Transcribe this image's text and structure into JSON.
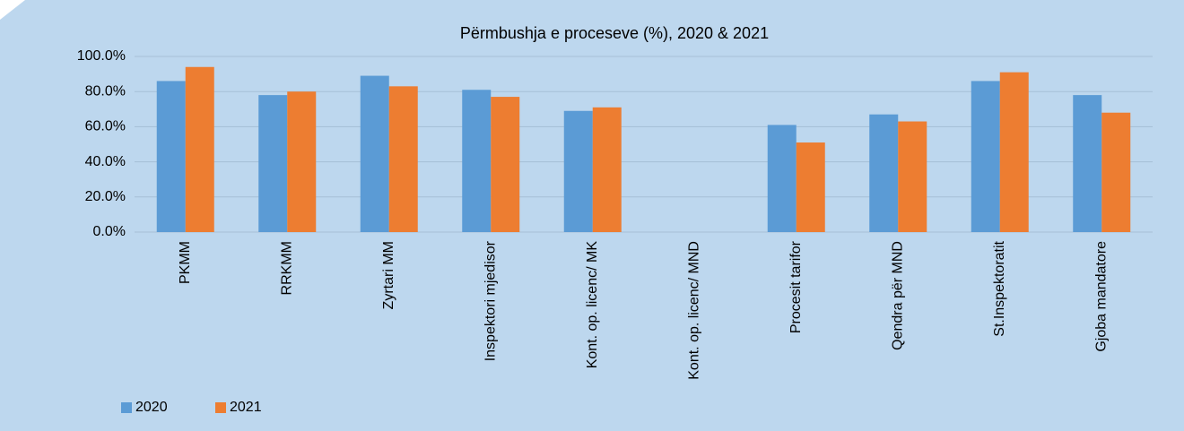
{
  "chart_data": {
    "type": "bar",
    "title": "Përmbushja e proceseve (%), 2020 & 2021",
    "categories": [
      "PKMM",
      "RRKMM",
      "Zyrtari MM",
      "Inspektori mjedisor",
      "Kont. op. licenc/ MK",
      "Kont. op. licenc/ MND",
      "Procesit tarifor",
      "Qendra për MND",
      "St.Inspektoratit",
      "Gjoba mandatore"
    ],
    "series": [
      {
        "name": "2020",
        "color": "#5b9bd5",
        "values": [
          86,
          78,
          89,
          81,
          69,
          null,
          61,
          67,
          86,
          78
        ]
      },
      {
        "name": "2021",
        "color": "#ed7d31",
        "values": [
          94,
          80,
          83,
          77,
          71,
          null,
          51,
          63,
          91,
          68
        ]
      }
    ],
    "ylim": [
      0,
      100
    ],
    "yticks": [
      {
        "value": 0,
        "label": "0.0%"
      },
      {
        "value": 20,
        "label": "20.0%"
      },
      {
        "value": 40,
        "label": "40.0%"
      },
      {
        "value": 60,
        "label": "60.0%"
      },
      {
        "value": 80,
        "label": "80.0%"
      },
      {
        "value": 100,
        "label": "100.0%"
      }
    ],
    "grid": true,
    "legend": "bottom-left"
  }
}
